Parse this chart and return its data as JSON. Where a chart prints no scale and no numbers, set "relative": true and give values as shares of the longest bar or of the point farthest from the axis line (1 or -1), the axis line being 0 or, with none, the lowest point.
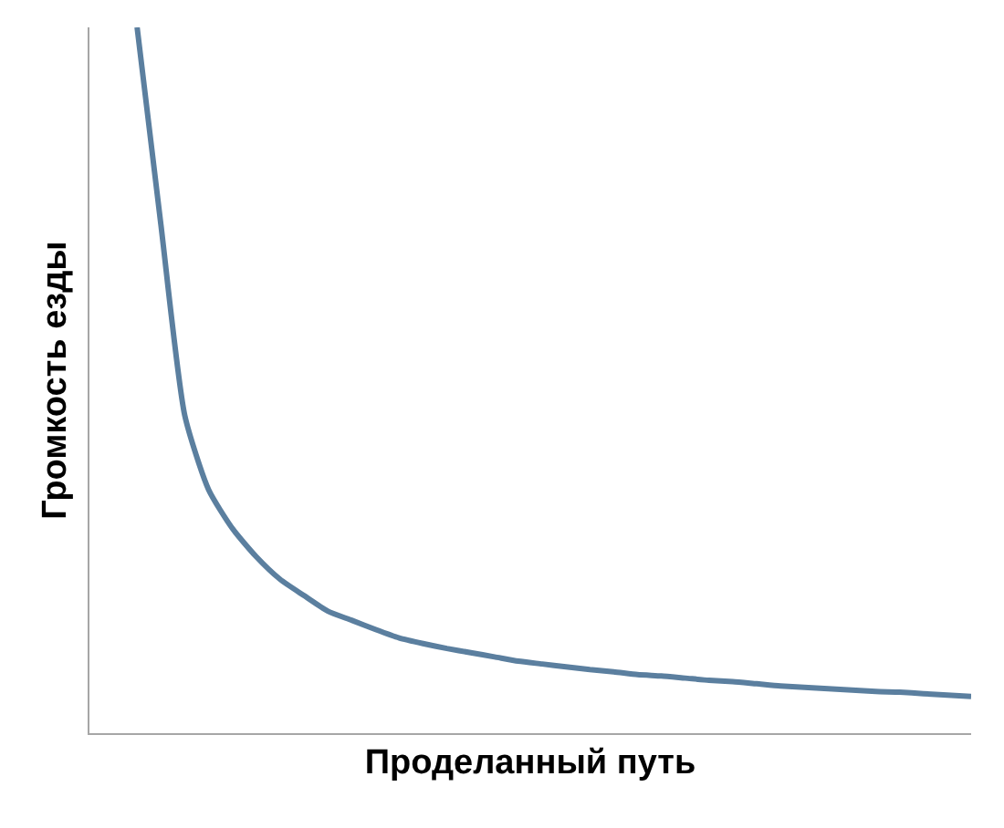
{
  "chart_data": {
    "type": "line",
    "relative": true,
    "xlabel": "Проделанный путь",
    "ylabel": "Громкость езды",
    "tick_labels": false,
    "legend": false,
    "marker": "none",
    "line_style": "solid",
    "categories": [
      null,
      null,
      null,
      null,
      null,
      null,
      null,
      null,
      null,
      null,
      null,
      null,
      null,
      null,
      null,
      null,
      null,
      null,
      null,
      null,
      null,
      null,
      null,
      null,
      null,
      null,
      null,
      null,
      null,
      null,
      null,
      null,
      null,
      null,
      null,
      null,
      null,
      null
    ],
    "series": [
      {
        "color": "#5b7f9f",
        "values": [
          null,
          null,
          1.0,
          0.72,
          0.45,
          0.345,
          0.29,
          0.25,
          0.218,
          0.195,
          0.173,
          0.16,
          0.147,
          0.135,
          0.127,
          0.12,
          0.114,
          0.108,
          0.102,
          0.098,
          0.094,
          0.09,
          0.087,
          0.083,
          0.081,
          0.078,
          0.075,
          0.073,
          0.07,
          0.067,
          0.065,
          0.063,
          0.061,
          0.059,
          0.058,
          0.056,
          0.054,
          0.052
        ]
      }
    ]
  }
}
